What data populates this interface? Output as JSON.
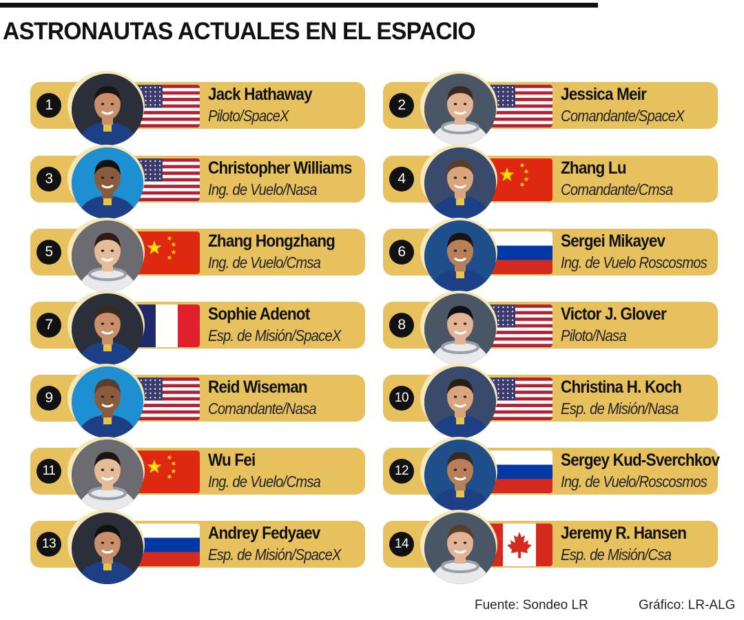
{
  "title": "ASTRONAUTAS ACTUALES EN EL ESPACIO",
  "colors": {
    "card": "#e8c15f",
    "badge": "#111111",
    "ring": "#f6e7b9"
  },
  "astronauts": [
    {
      "number": "1",
      "name": "Jack Hathaway",
      "role": "Piloto/SpaceX",
      "flag": "usa"
    },
    {
      "number": "2",
      "name": "Jessica Meir",
      "role": "Comandante/SpaceX",
      "flag": "usa"
    },
    {
      "number": "3",
      "name": "Christopher Williams",
      "role": "Ing. de Vuelo/Nasa",
      "flag": "usa"
    },
    {
      "number": "4",
      "name": "Zhang Lu",
      "role": "Comandante/Cmsa",
      "flag": "china"
    },
    {
      "number": "5",
      "name": "Zhang Hongzhang",
      "role": "Ing. de Vuelo/Cmsa",
      "flag": "china"
    },
    {
      "number": "6",
      "name": "Sergei Mikayev",
      "role": "Ing. de Vuelo Roscosmos",
      "flag": "russia"
    },
    {
      "number": "7",
      "name": "Sophie Adenot",
      "role": "Esp. de Misión/SpaceX",
      "flag": "france"
    },
    {
      "number": "8",
      "name": "Victor J. Glover",
      "role": "Piloto/Nasa",
      "flag": "usa"
    },
    {
      "number": "9",
      "name": "Reid Wiseman",
      "role": "Comandante/Nasa",
      "flag": "usa"
    },
    {
      "number": "10",
      "name": "Christina H. Koch",
      "role": "Esp. de Misión/Nasa",
      "flag": "usa"
    },
    {
      "number": "11",
      "name": "Wu Fei",
      "role": "Ing. de Vuelo/Cmsa",
      "flag": "china"
    },
    {
      "number": "12",
      "name": "Sergey Kud-Sverchkov",
      "role": "Ing. de Vuelo/Roscosmos",
      "flag": "russia"
    },
    {
      "number": "13",
      "name": "Andrey Fedyaev",
      "role": "Esp. de Misión/SpaceX",
      "flag": "russia"
    },
    {
      "number": "14",
      "name": "Jeremy R. Hansen",
      "role": "Esp. de Misión/Csa",
      "flag": "canada"
    }
  ],
  "footer": {
    "source": "Fuente: Sondeo LR",
    "credit": "Gráfico: LR-ALG"
  }
}
